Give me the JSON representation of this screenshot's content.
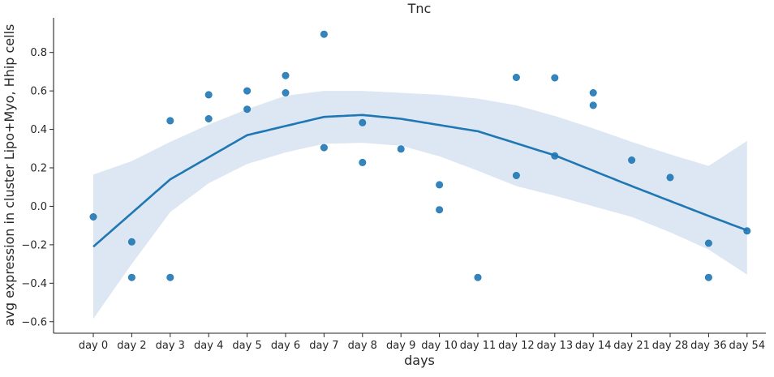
{
  "chart_data": {
    "type": "scatter",
    "title": "Tnc",
    "xlabel": "days",
    "ylabel": "avg expression in cluster Lipo+Myo, Hhip cells",
    "categories": [
      "day 0",
      "day 2",
      "day 3",
      "day 4",
      "day 5",
      "day 6",
      "day 7",
      "day 8",
      "day 9",
      "day 10",
      "day 11",
      "day 12",
      "day 13",
      "day 14",
      "day 21",
      "day 28",
      "day 36",
      "day 54"
    ],
    "yticks": [
      -0.6,
      -0.4,
      -0.2,
      0.0,
      0.2,
      0.4,
      0.6,
      0.8
    ],
    "ytick_labels": [
      "−0.6",
      "−0.4",
      "−0.2",
      "0.0",
      "0.2",
      "0.4",
      "0.6",
      "0.8"
    ],
    "ylim": [
      -0.66,
      0.98
    ],
    "grid": false,
    "colors": {
      "points": "#1f77b4",
      "line": "#1f77b4",
      "band": "#dce7f3",
      "axis": "#262626"
    },
    "points": [
      {
        "x": 0,
        "y": -0.055
      },
      {
        "x": 1,
        "y": -0.185
      },
      {
        "x": 1,
        "y": -0.37
      },
      {
        "x": 2,
        "y": 0.445
      },
      {
        "x": 2,
        "y": -0.37
      },
      {
        "x": 3,
        "y": 0.58
      },
      {
        "x": 3,
        "y": 0.455
      },
      {
        "x": 4,
        "y": 0.6
      },
      {
        "x": 4,
        "y": 0.505
      },
      {
        "x": 5,
        "y": 0.68
      },
      {
        "x": 5,
        "y": 0.59
      },
      {
        "x": 6,
        "y": 0.895
      },
      {
        "x": 6,
        "y": 0.305
      },
      {
        "x": 7,
        "y": 0.435
      },
      {
        "x": 7,
        "y": 0.228
      },
      {
        "x": 8,
        "y": 0.298
      },
      {
        "x": 9,
        "y": 0.112
      },
      {
        "x": 9,
        "y": -0.018
      },
      {
        "x": 10,
        "y": -0.37
      },
      {
        "x": 11,
        "y": 0.67
      },
      {
        "x": 11,
        "y": 0.16
      },
      {
        "x": 12,
        "y": 0.668
      },
      {
        "x": 12,
        "y": 0.262
      },
      {
        "x": 13,
        "y": 0.59
      },
      {
        "x": 13,
        "y": 0.525
      },
      {
        "x": 14,
        "y": 0.24
      },
      {
        "x": 15,
        "y": 0.15
      },
      {
        "x": 16,
        "y": -0.192
      },
      {
        "x": 16,
        "y": -0.37
      },
      {
        "x": 17,
        "y": -0.128
      }
    ],
    "fit_line": [
      {
        "x": 0,
        "y": -0.21
      },
      {
        "x": 2,
        "y": 0.14
      },
      {
        "x": 4,
        "y": 0.37
      },
      {
        "x": 6,
        "y": 0.465
      },
      {
        "x": 7,
        "y": 0.475
      },
      {
        "x": 8,
        "y": 0.455
      },
      {
        "x": 10,
        "y": 0.39
      },
      {
        "x": 12,
        "y": 0.265
      },
      {
        "x": 14,
        "y": 0.105
      },
      {
        "x": 16,
        "y": -0.05
      },
      {
        "x": 17,
        "y": -0.125
      }
    ],
    "confidence_band": {
      "x": [
        0,
        1,
        2,
        3,
        4,
        5,
        6,
        7,
        8,
        9,
        10,
        11,
        12,
        13,
        14,
        15,
        16,
        17
      ],
      "upper": [
        0.165,
        0.235,
        0.335,
        0.425,
        0.505,
        0.575,
        0.6,
        0.6,
        0.59,
        0.58,
        0.56,
        0.525,
        0.47,
        0.405,
        0.335,
        0.27,
        0.21,
        0.34
      ],
      "lower": [
        -0.585,
        -0.3,
        -0.03,
        0.12,
        0.22,
        0.28,
        0.325,
        0.33,
        0.315,
        0.26,
        0.185,
        0.105,
        0.055,
        0.0,
        -0.055,
        -0.135,
        -0.225,
        -0.355
      ]
    }
  }
}
